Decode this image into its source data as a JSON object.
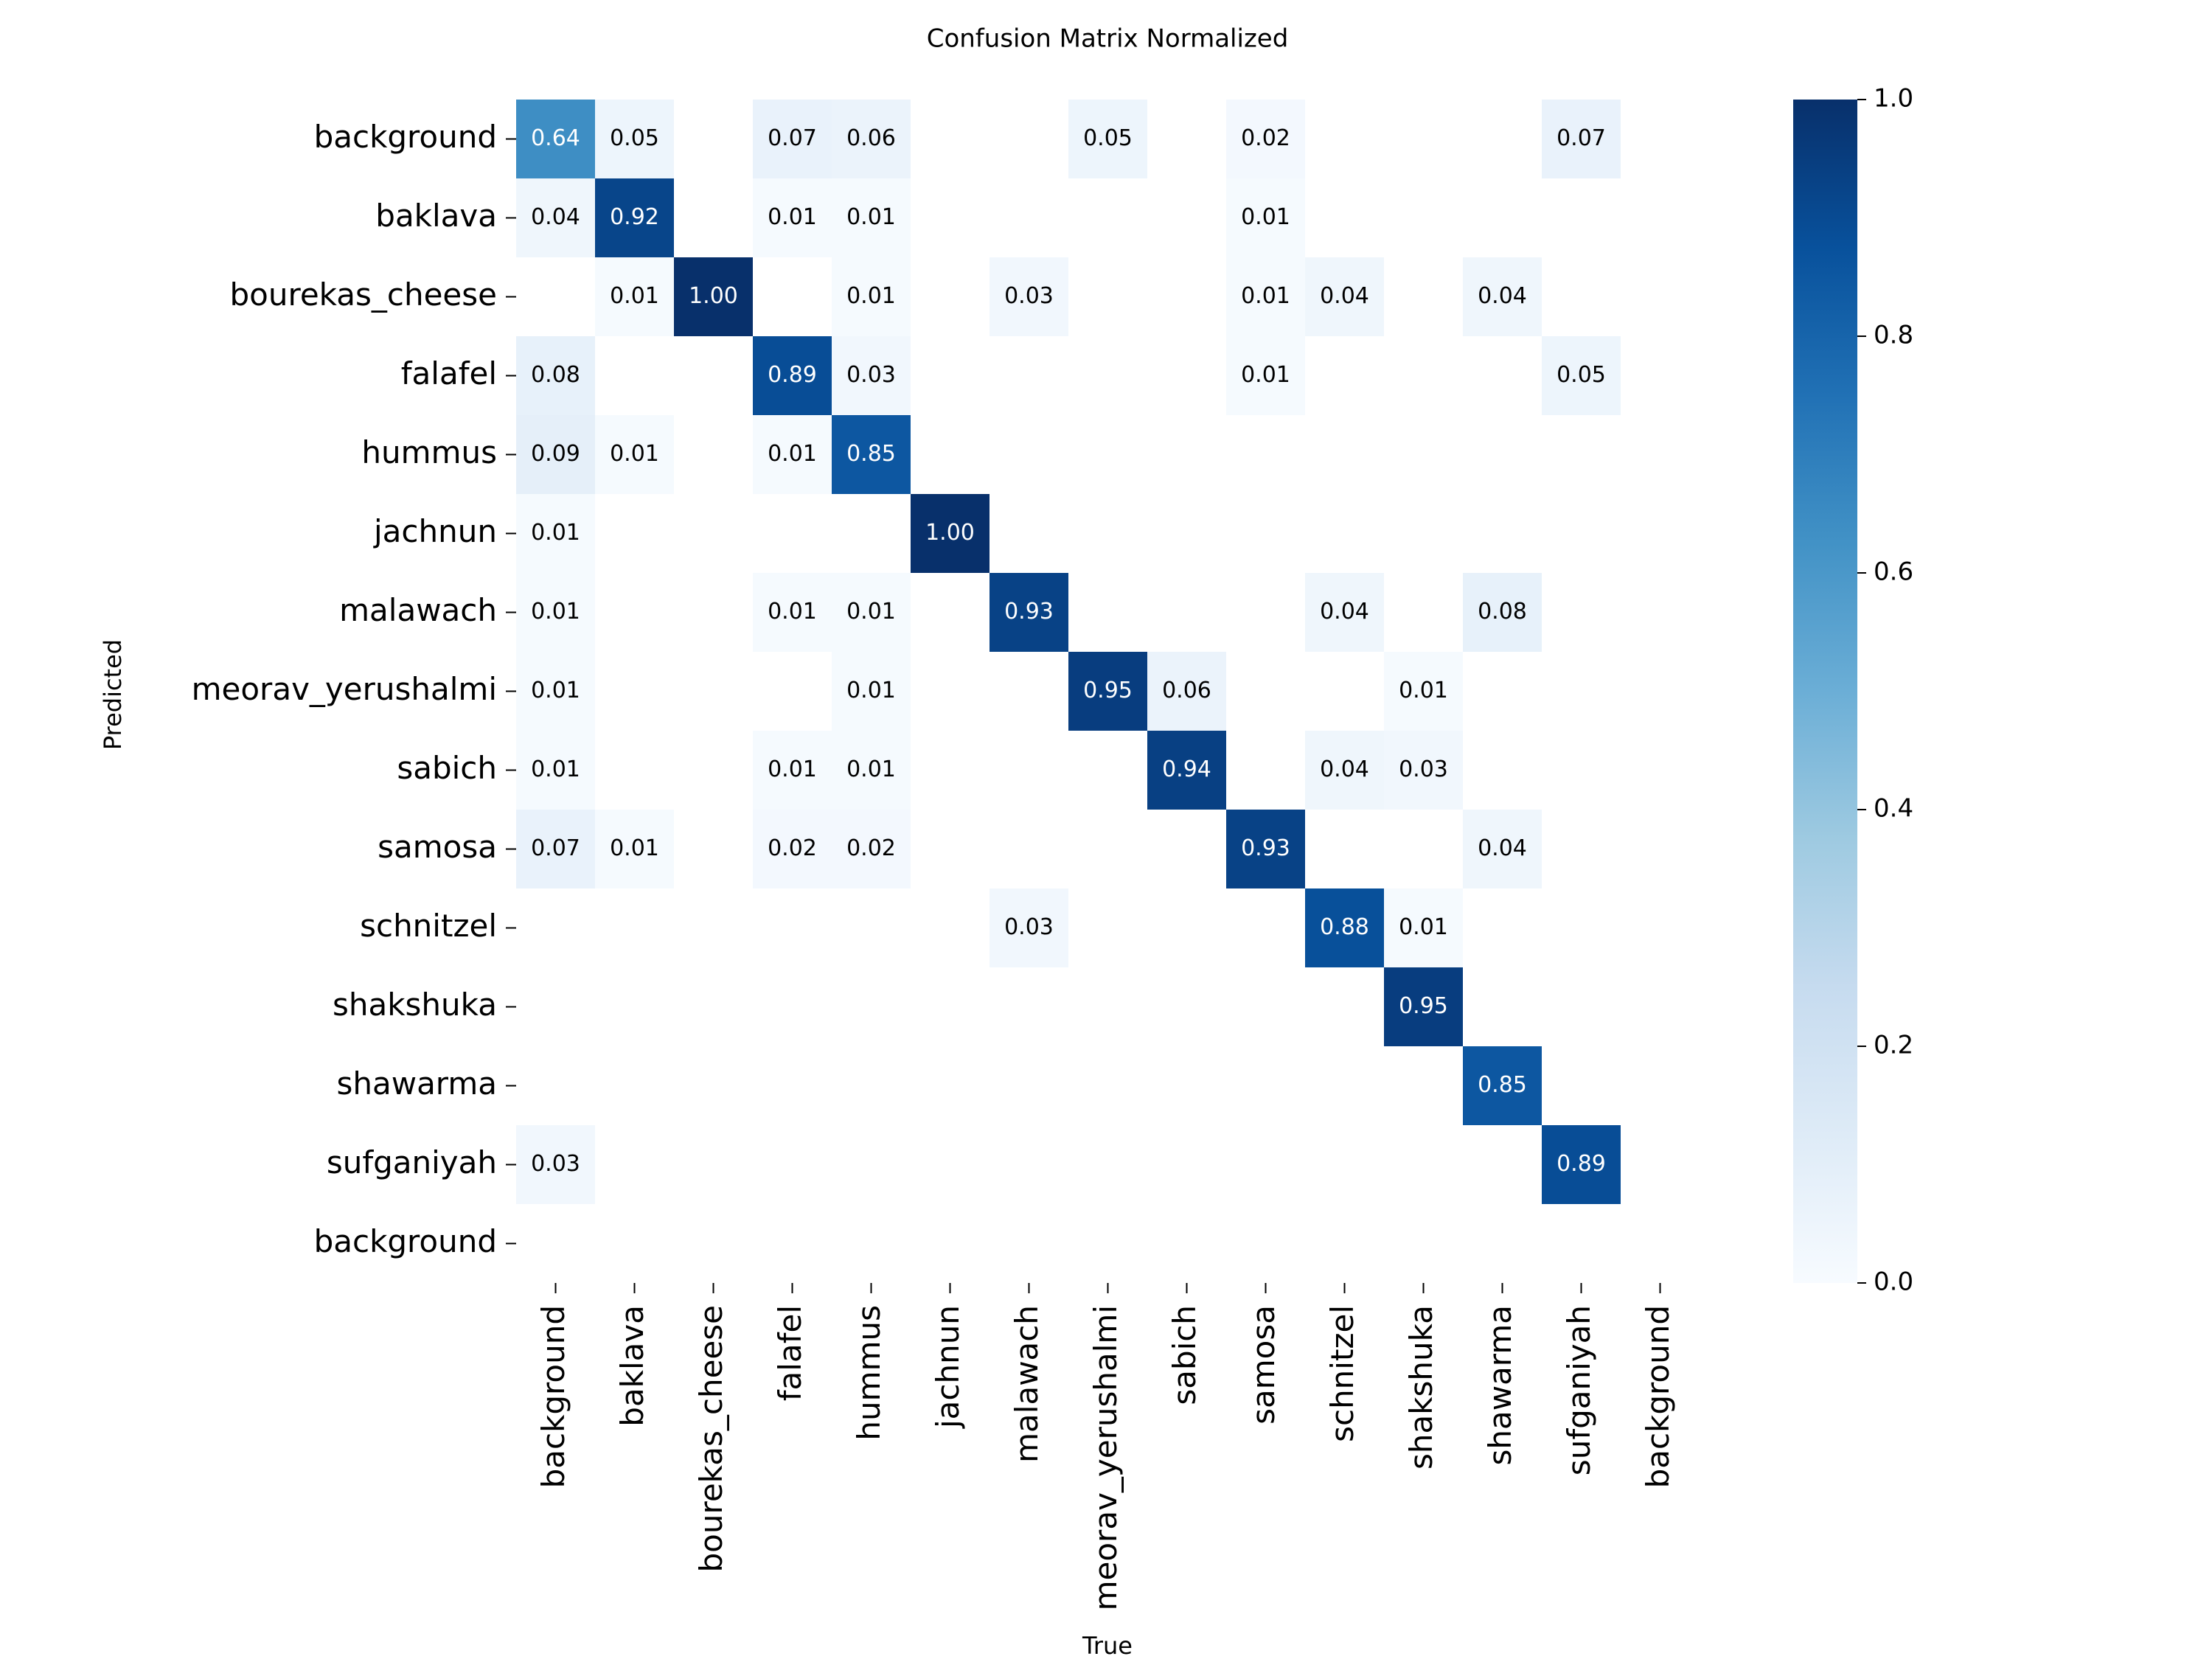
{
  "chart_data": {
    "type": "heatmap",
    "title": "Confusion Matrix Normalized",
    "xlabel": "True",
    "ylabel": "Predicted",
    "x_categories": [
      "background",
      "baklava",
      "bourekas_cheese",
      "falafel",
      "hummus",
      "jachnun",
      "malawach",
      "meorav_yerushalmi",
      "sabich",
      "samosa",
      "schnitzel",
      "shakshuka",
      "shawarma",
      "sufganiyah",
      "background"
    ],
    "y_categories": [
      "background",
      "baklava",
      "bourekas_cheese",
      "falafel",
      "hummus",
      "jachnun",
      "malawach",
      "meorav_yerushalmi",
      "sabich",
      "samosa",
      "schnitzel",
      "shakshuka",
      "shawarma",
      "sufganiyah",
      "background"
    ],
    "values": [
      [
        0.64,
        0.05,
        null,
        0.07,
        0.06,
        null,
        null,
        0.05,
        null,
        0.02,
        null,
        null,
        null,
        0.07,
        null
      ],
      [
        0.04,
        0.92,
        null,
        0.01,
        0.01,
        null,
        null,
        null,
        null,
        0.01,
        null,
        null,
        null,
        null,
        null
      ],
      [
        null,
        0.01,
        1,
        null,
        0.01,
        null,
        0.03,
        null,
        null,
        0.01,
        0.04,
        null,
        0.04,
        null,
        null
      ],
      [
        0.08,
        null,
        null,
        0.89,
        0.03,
        null,
        null,
        null,
        null,
        0.01,
        null,
        null,
        null,
        0.05,
        null
      ],
      [
        0.09,
        0.01,
        null,
        0.01,
        0.85,
        null,
        null,
        null,
        null,
        null,
        null,
        null,
        null,
        null,
        null
      ],
      [
        0.01,
        null,
        null,
        null,
        null,
        1,
        null,
        null,
        null,
        null,
        null,
        null,
        null,
        null,
        null
      ],
      [
        0.01,
        null,
        null,
        0.01,
        0.01,
        null,
        0.93,
        null,
        null,
        null,
        0.04,
        null,
        0.08,
        null,
        null
      ],
      [
        0.01,
        null,
        null,
        null,
        0.01,
        null,
        null,
        0.95,
        0.06,
        null,
        null,
        0.01,
        null,
        null,
        null
      ],
      [
        0.01,
        null,
        null,
        0.01,
        0.01,
        null,
        null,
        null,
        0.94,
        null,
        0.04,
        0.03,
        null,
        null,
        null
      ],
      [
        0.07,
        0.01,
        null,
        0.02,
        0.02,
        null,
        null,
        null,
        null,
        0.93,
        null,
        null,
        0.04,
        null,
        null
      ],
      [
        null,
        null,
        null,
        null,
        null,
        null,
        0.03,
        null,
        null,
        null,
        0.88,
        0.01,
        null,
        null,
        null
      ],
      [
        null,
        null,
        null,
        null,
        null,
        null,
        null,
        null,
        null,
        null,
        null,
        0.95,
        null,
        null,
        null
      ],
      [
        null,
        null,
        null,
        null,
        null,
        null,
        null,
        null,
        null,
        null,
        null,
        null,
        0.85,
        null,
        null
      ],
      [
        0.03,
        null,
        null,
        null,
        null,
        null,
        null,
        null,
        null,
        null,
        null,
        null,
        null,
        0.89,
        null
      ],
      [
        null,
        null,
        null,
        null,
        null,
        null,
        null,
        null,
        null,
        null,
        null,
        null,
        null,
        null,
        null
      ]
    ],
    "value_labels": [
      [
        "0.64",
        "0.05",
        null,
        "0.07",
        "0.06",
        null,
        null,
        "0.05",
        null,
        "0.02",
        null,
        null,
        null,
        "0.07",
        null
      ],
      [
        "0.04",
        "0.92",
        null,
        "0.01",
        "0.01",
        null,
        null,
        null,
        null,
        "0.01",
        null,
        null,
        null,
        null,
        null
      ],
      [
        null,
        "0.01",
        "1.00",
        null,
        "0.01",
        null,
        "0.03",
        null,
        null,
        "0.01",
        "0.04",
        null,
        "0.04",
        null,
        null
      ],
      [
        "0.08",
        null,
        null,
        "0.89",
        "0.03",
        null,
        null,
        null,
        null,
        "0.01",
        null,
        null,
        null,
        "0.05",
        null
      ],
      [
        "0.09",
        "0.01",
        null,
        "0.01",
        "0.85",
        null,
        null,
        null,
        null,
        null,
        null,
        null,
        null,
        null,
        null
      ],
      [
        "0.01",
        null,
        null,
        null,
        null,
        "1.00",
        null,
        null,
        null,
        null,
        null,
        null,
        null,
        null,
        null
      ],
      [
        "0.01",
        null,
        null,
        "0.01",
        "0.01",
        null,
        "0.93",
        null,
        null,
        null,
        "0.04",
        null,
        "0.08",
        null,
        null
      ],
      [
        "0.01",
        null,
        null,
        null,
        "0.01",
        null,
        null,
        "0.95",
        "0.06",
        null,
        null,
        "0.01",
        null,
        null,
        null
      ],
      [
        "0.01",
        null,
        null,
        "0.01",
        "0.01",
        null,
        null,
        null,
        "0.94",
        null,
        "0.04",
        "0.03",
        null,
        null,
        null
      ],
      [
        "0.07",
        "0.01",
        null,
        "0.02",
        "0.02",
        null,
        null,
        null,
        null,
        "0.93",
        null,
        null,
        "0.04",
        null,
        null
      ],
      [
        null,
        null,
        null,
        null,
        null,
        null,
        "0.03",
        null,
        null,
        null,
        "0.88",
        "0.01",
        null,
        null,
        null
      ],
      [
        null,
        null,
        null,
        null,
        null,
        null,
        null,
        null,
        null,
        null,
        null,
        "0.95",
        null,
        null,
        null
      ],
      [
        null,
        null,
        null,
        null,
        null,
        null,
        null,
        null,
        null,
        null,
        null,
        null,
        "0.85",
        null,
        null
      ],
      [
        "0.03",
        null,
        null,
        null,
        null,
        null,
        null,
        null,
        null,
        null,
        null,
        null,
        null,
        "0.89",
        null
      ],
      [
        null,
        null,
        null,
        null,
        null,
        null,
        null,
        null,
        null,
        null,
        null,
        null,
        null,
        null,
        null
      ]
    ],
    "zlim": [
      0,
      1
    ],
    "zticks": [
      {
        "value": 0,
        "label": "0.0"
      },
      0.2,
      0.4,
      0.6,
      0.8,
      {
        "value": 1,
        "label": "1.0"
      }
    ],
    "colormap": [
      "#f7fbff",
      "#deebf7",
      "#c6dbef",
      "#9ecae1",
      "#6baed6",
      "#4292c6",
      "#2171b5",
      "#08519c",
      "#08306b"
    ]
  }
}
